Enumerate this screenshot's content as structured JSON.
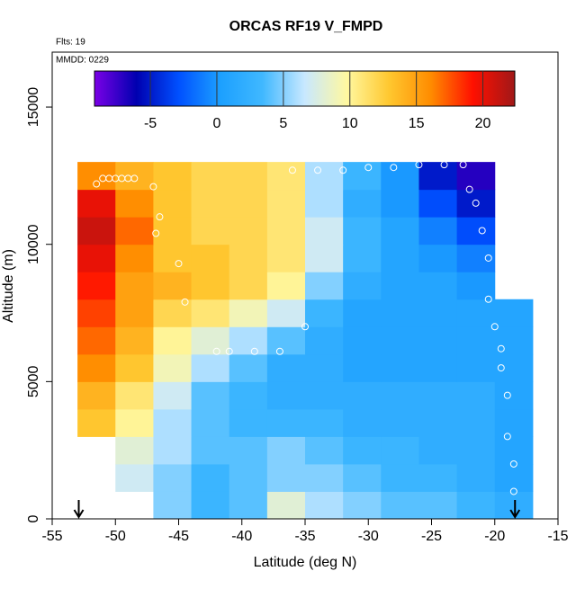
{
  "chart_data": {
    "type": "heatmap",
    "title": "ORCAS RF19 V_FMPD",
    "subtitle": "Flts: 19",
    "annotation": "MMDD: 0229",
    "xlabel": "Latitude (deg N)",
    "ylabel": "Altitude (m)",
    "xlim": [
      -55,
      -15
    ],
    "xticks": [
      -55,
      -50,
      -45,
      -40,
      -35,
      -30,
      -25,
      -20,
      -15
    ],
    "ylim": [
      0,
      17000
    ],
    "yticks": [
      0,
      5000,
      10000,
      15000
    ],
    "x": [
      -51.5,
      -48.5,
      -45.5,
      -42.5,
      -39.5,
      -36.5,
      -33.5,
      -30.5,
      -27.5,
      -24.5,
      -21.5,
      -18.5
    ],
    "y": [
      500,
      1500,
      2500,
      3500,
      4500,
      5500,
      6500,
      7500,
      8500,
      9500,
      10500,
      11500,
      12500
    ],
    "values": [
      [
        null,
        null,
        5,
        3,
        4,
        8,
        6,
        5,
        4,
        4,
        3,
        2
      ],
      [
        null,
        7,
        5,
        3,
        4,
        5,
        5,
        4,
        3,
        3,
        2,
        1
      ],
      [
        null,
        8,
        6,
        4,
        4,
        5,
        4,
        3,
        3,
        2,
        2,
        1
      ],
      [
        13,
        10,
        6,
        4,
        3,
        3,
        3,
        2,
        2,
        2,
        2,
        1
      ],
      [
        14,
        11,
        7,
        4,
        3,
        2,
        2,
        2,
        2,
        2,
        2,
        1
      ],
      [
        16,
        13,
        9,
        6,
        4,
        2,
        2,
        1,
        1,
        1,
        1,
        1
      ],
      [
        17,
        14,
        10,
        8,
        6,
        4,
        2,
        1,
        1,
        1,
        1,
        1
      ],
      [
        18,
        15,
        12,
        11,
        9,
        7,
        3,
        1,
        1,
        1,
        1,
        1
      ],
      [
        19,
        15,
        14,
        13,
        12,
        10,
        5,
        2,
        1,
        1,
        0,
        null
      ],
      [
        20,
        16,
        13,
        13,
        12,
        11,
        7,
        3,
        1,
        0,
        -1,
        null
      ],
      [
        21,
        17,
        13,
        12,
        12,
        11,
        7,
        3,
        1,
        -1,
        -3,
        null
      ],
      [
        20,
        16,
        13,
        12,
        12,
        11,
        6,
        2,
        0,
        -3,
        -5,
        null
      ],
      [
        16,
        14,
        13,
        12,
        12,
        11,
        6,
        3,
        0,
        -5,
        -7,
        null
      ]
    ],
    "colorbar_lim": [
      -9.2,
      22.4
    ],
    "colorbar_ticks": [
      -5,
      0,
      5,
      10,
      15,
      20
    ],
    "colorscale": [
      "#7a00e6",
      "#0000b0",
      "#0050ff",
      "#1ca0ff",
      "#40b8ff",
      "#c8e8ff",
      "#fff8a0",
      "#ffc830",
      "#ff8c00",
      "#ff1000",
      "#a01818"
    ],
    "track": {
      "x": [
        -51.5,
        -51,
        -50.5,
        -50,
        -49.5,
        -49,
        -48.5,
        -47,
        -46.5,
        -46.8,
        -45,
        -44.5,
        -42,
        -41,
        -39,
        -37,
        -35,
        -36,
        -34,
        -32,
        -30,
        -28,
        -26,
        -24,
        -22.5,
        -22,
        -21.5,
        -21,
        -20.5,
        -20.5,
        -20,
        -19.5,
        -19.5,
        -19,
        -19,
        -18.5,
        -18.5
      ],
      "y": [
        12200,
        12400,
        12400,
        12400,
        12400,
        12400,
        12400,
        12100,
        11000,
        10400,
        9300,
        7900,
        6100,
        6100,
        6100,
        6100,
        7000,
        12700,
        12700,
        12700,
        12800,
        12800,
        12900,
        12900,
        12900,
        12000,
        11500,
        10500,
        9500,
        8000,
        7000,
        6200,
        5500,
        4500,
        3000,
        2000,
        1000
      ]
    },
    "arrows_x": [
      -52.9,
      -18.4
    ]
  }
}
